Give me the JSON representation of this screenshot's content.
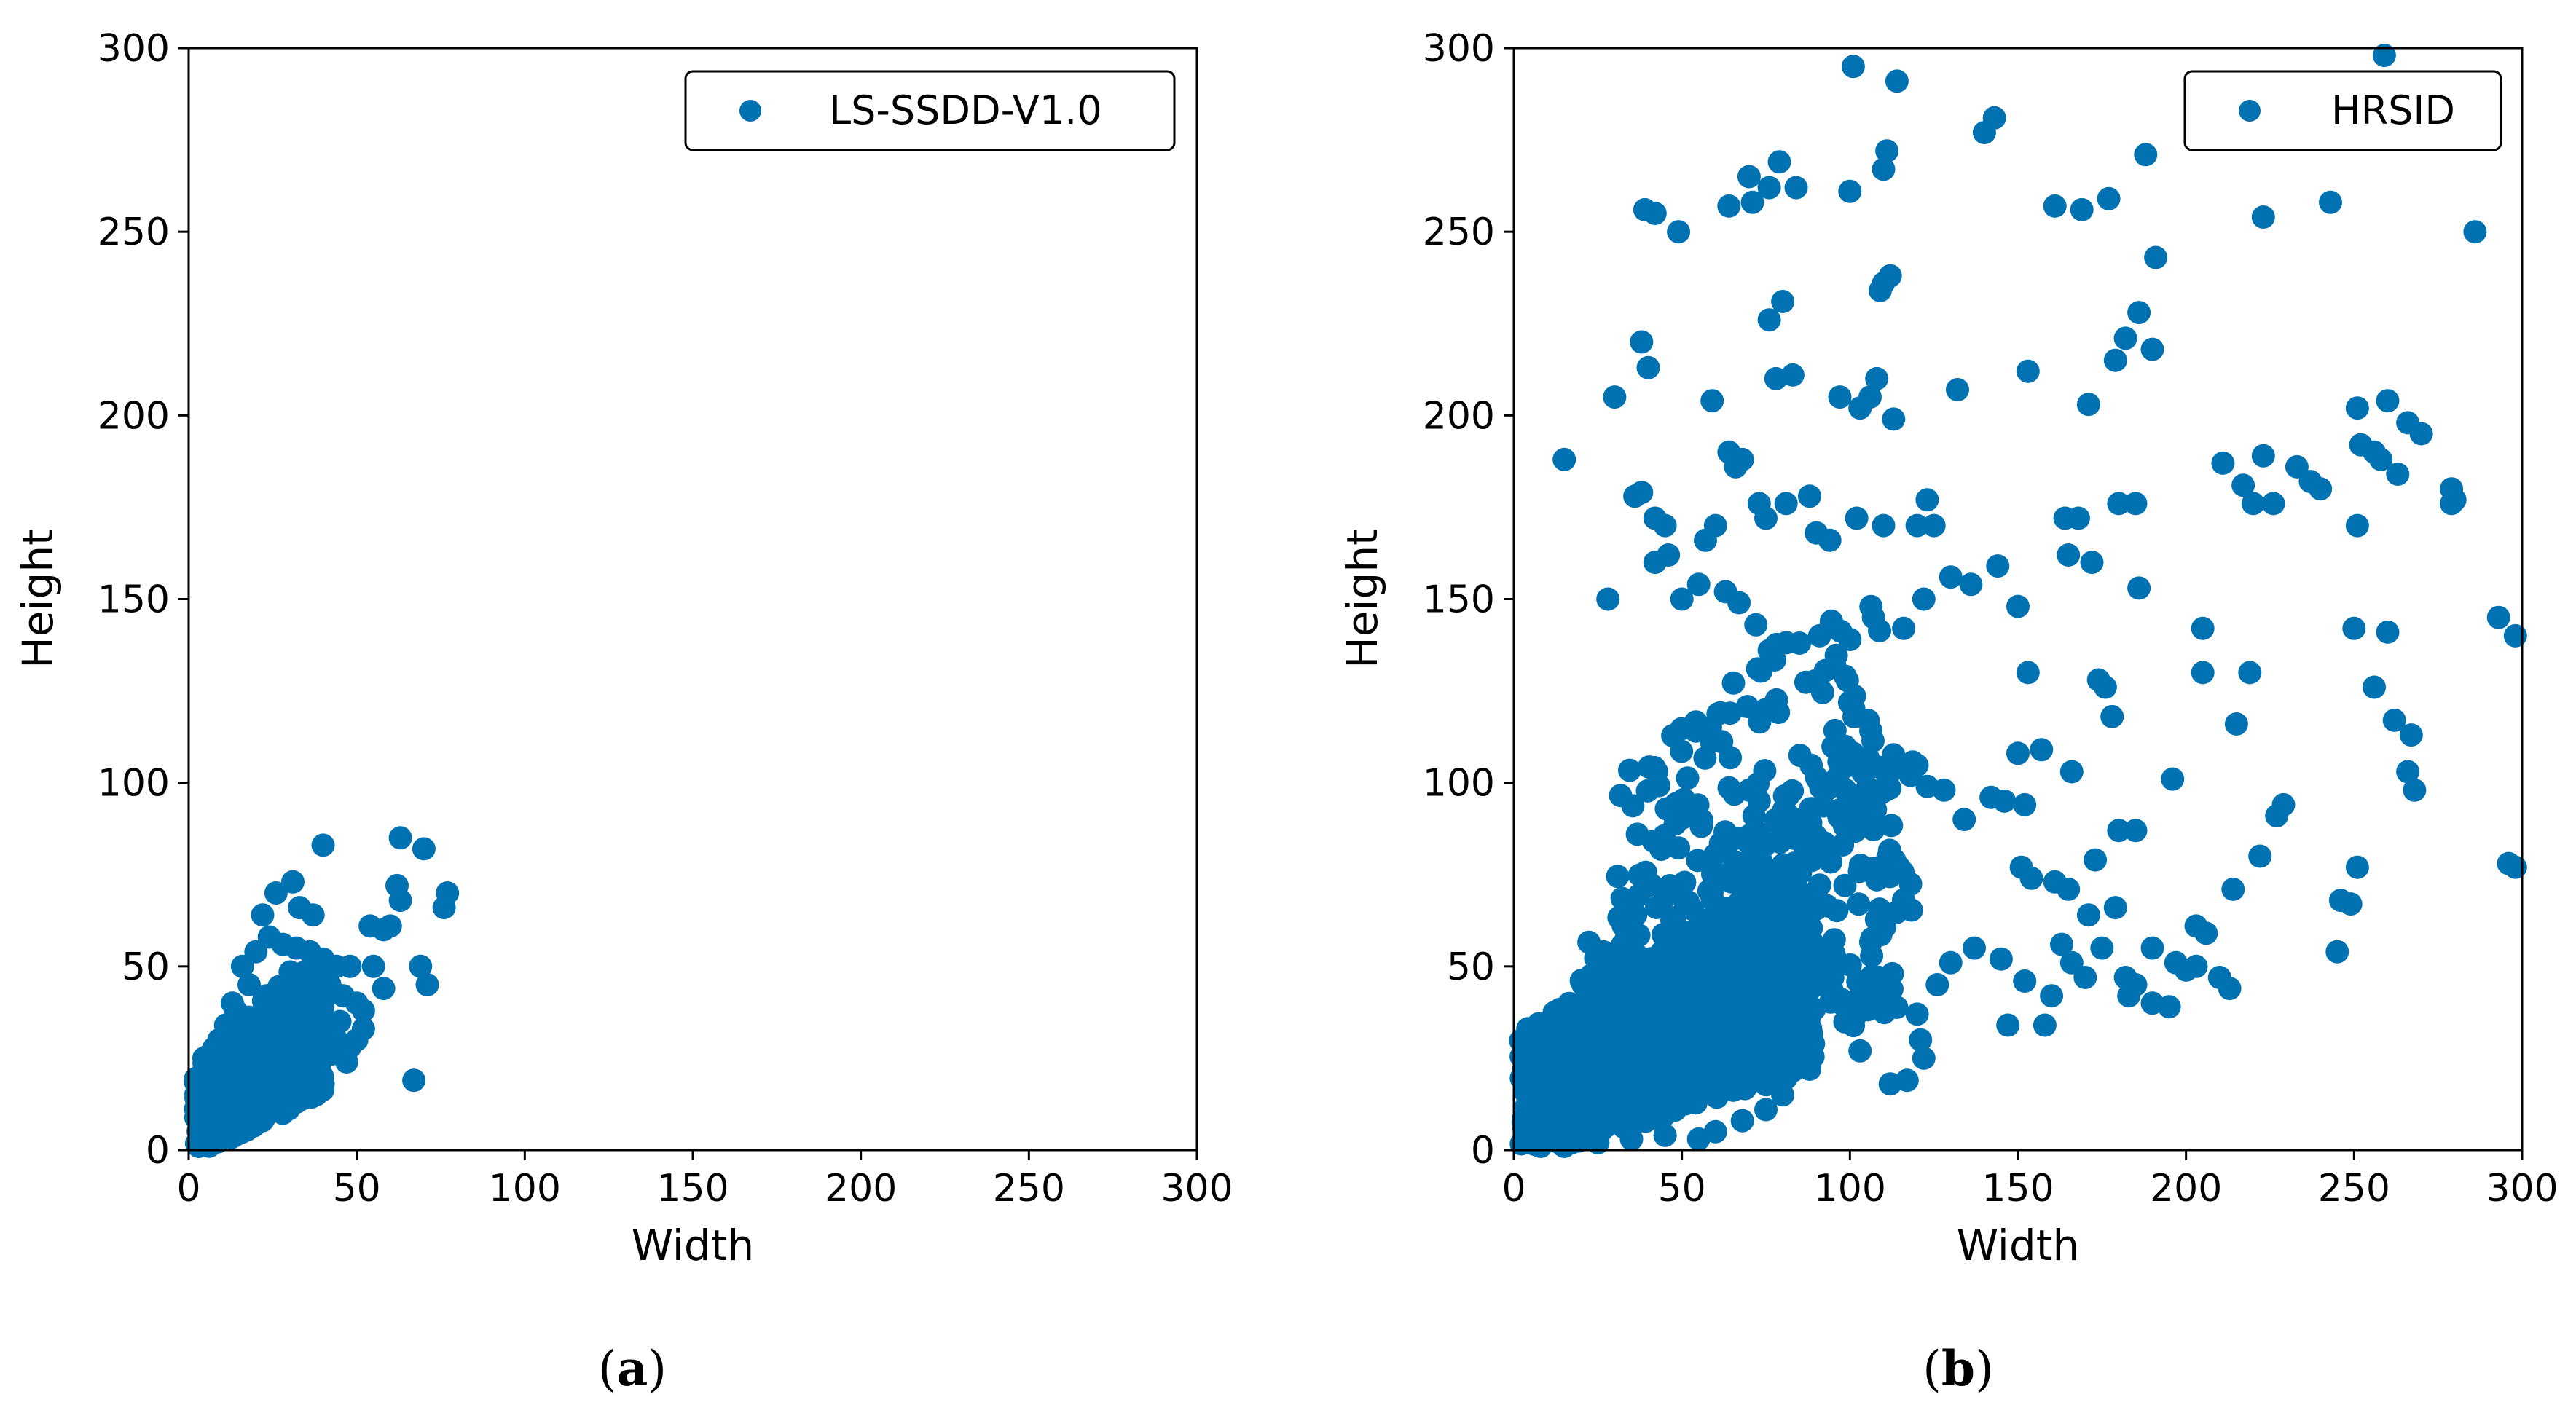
{
  "chart_data": [
    {
      "type": "scatter",
      "panel": "a",
      "caption": {
        "open": "(",
        "letter": "a",
        "close": ")"
      },
      "xlabel": "Width",
      "ylabel": "Height",
      "xlim": [
        0,
        300
      ],
      "ylim": [
        0,
        300
      ],
      "xticks": [
        "0",
        "50",
        "100",
        "150",
        "200",
        "250",
        "300"
      ],
      "yticks": [
        "0",
        "50",
        "100",
        "150",
        "200",
        "250",
        "300"
      ],
      "legend": {
        "label": "LS-SSDD-V1.0",
        "location": "top-right"
      },
      "color": "#0072b2",
      "clusters": [
        {
          "description": "dense",
          "x_range": [
            2,
            40
          ],
          "y_range": [
            1,
            50
          ],
          "count": 600
        }
      ],
      "points": [
        [
          40,
          83
        ],
        [
          63,
          85
        ],
        [
          70,
          82
        ],
        [
          77,
          70
        ],
        [
          76,
          66
        ],
        [
          71,
          45
        ],
        [
          67,
          19
        ],
        [
          69,
          50
        ],
        [
          62,
          72
        ],
        [
          63,
          68
        ],
        [
          58,
          60
        ],
        [
          60,
          61
        ],
        [
          54,
          61
        ],
        [
          31,
          73
        ],
        [
          26,
          70
        ],
        [
          33,
          66
        ],
        [
          37,
          64
        ],
        [
          22,
          64
        ],
        [
          48,
          50
        ],
        [
          55,
          50
        ],
        [
          58,
          44
        ],
        [
          52,
          38
        ],
        [
          45,
          35
        ],
        [
          50,
          30
        ],
        [
          44,
          30
        ],
        [
          42,
          26
        ],
        [
          48,
          28
        ],
        [
          36,
          25
        ],
        [
          30,
          20
        ],
        [
          25,
          15
        ],
        [
          20,
          12
        ],
        [
          15,
          8
        ],
        [
          10,
          6
        ],
        [
          8,
          3
        ],
        [
          5,
          2
        ],
        [
          3,
          1
        ],
        [
          12,
          30
        ],
        [
          10,
          22
        ],
        [
          8,
          18
        ],
        [
          14,
          38
        ],
        [
          18,
          45
        ],
        [
          16,
          50
        ],
        [
          20,
          54
        ],
        [
          24,
          58
        ],
        [
          28,
          56
        ],
        [
          32,
          55
        ],
        [
          36,
          54
        ],
        [
          40,
          52
        ],
        [
          44,
          50
        ],
        [
          42,
          45
        ],
        [
          38,
          40
        ],
        [
          46,
          42
        ],
        [
          50,
          40
        ],
        [
          52,
          33
        ],
        [
          47,
          24
        ],
        [
          40,
          18
        ],
        [
          34,
          14
        ],
        [
          28,
          10
        ],
        [
          22,
          8
        ],
        [
          18,
          6
        ],
        [
          5,
          10
        ],
        [
          6,
          14
        ],
        [
          4,
          6
        ],
        [
          7,
          26
        ],
        [
          9,
          30
        ],
        [
          11,
          34
        ],
        [
          13,
          40
        ],
        [
          20,
          28
        ],
        [
          26,
          32
        ],
        [
          30,
          36
        ],
        [
          34,
          40
        ],
        [
          38,
          30
        ]
      ]
    },
    {
      "type": "scatter",
      "panel": "b",
      "caption": {
        "open": "(",
        "letter": "b",
        "close": ")"
      },
      "xlabel": "Width",
      "ylabel": "Height",
      "xlim": [
        0,
        300
      ],
      "ylim": [
        0,
        300
      ],
      "xticks": [
        "0",
        "50",
        "100",
        "150",
        "200",
        "250",
        "300"
      ],
      "yticks": [
        "0",
        "50",
        "100",
        "150",
        "200",
        "250",
        "300"
      ],
      "legend": {
        "label": "HRSID",
        "location": "top-right"
      },
      "color": "#0072b2",
      "clusters": [
        {
          "description": "dense-core",
          "x_range": [
            2,
            90
          ],
          "y_range": [
            1,
            70
          ],
          "count": 900
        },
        {
          "description": "mid-band",
          "x_range": [
            20,
            120
          ],
          "y_range": [
            10,
            110
          ],
          "count": 350
        },
        {
          "description": "upper-spread",
          "x_range": [
            30,
            110
          ],
          "y_range": [
            60,
            150
          ],
          "count": 120
        }
      ],
      "points": [
        [
          101,
          295
        ],
        [
          114,
          291
        ],
        [
          259,
          298
        ],
        [
          143,
          281
        ],
        [
          140,
          277
        ],
        [
          79,
          269
        ],
        [
          70,
          265
        ],
        [
          64,
          257
        ],
        [
          71,
          258
        ],
        [
          76,
          262
        ],
        [
          84,
          262
        ],
        [
          100,
          261
        ],
        [
          110,
          267
        ],
        [
          111,
          272
        ],
        [
          188,
          271
        ],
        [
          161,
          257
        ],
        [
          169,
          256
        ],
        [
          177,
          259
        ],
        [
          243,
          258
        ],
        [
          223,
          254
        ],
        [
          286,
          250
        ],
        [
          39,
          256
        ],
        [
          42,
          255
        ],
        [
          49,
          250
        ],
        [
          191,
          243
        ],
        [
          110,
          236
        ],
        [
          112,
          238
        ],
        [
          109,
          234
        ],
        [
          80,
          231
        ],
        [
          76,
          226
        ],
        [
          38,
          220
        ],
        [
          40,
          213
        ],
        [
          83,
          211
        ],
        [
          78,
          210
        ],
        [
          59,
          204
        ],
        [
          30,
          205
        ],
        [
          97,
          205
        ],
        [
          103,
          202
        ],
        [
          106,
          205
        ],
        [
          113,
          199
        ],
        [
          108,
          210
        ],
        [
          132,
          207
        ],
        [
          153,
          212
        ],
        [
          182,
          221
        ],
        [
          179,
          215
        ],
        [
          186,
          228
        ],
        [
          190,
          218
        ],
        [
          171,
          203
        ],
        [
          251,
          202
        ],
        [
          260,
          204
        ],
        [
          266,
          198
        ],
        [
          270,
          195
        ],
        [
          252,
          192
        ],
        [
          256,
          190
        ],
        [
          258,
          188
        ],
        [
          223,
          189
        ],
        [
          220,
          176
        ],
        [
          226,
          176
        ],
        [
          233,
          186
        ],
        [
          237,
          182
        ],
        [
          240,
          180
        ],
        [
          211,
          187
        ],
        [
          217,
          181
        ],
        [
          279,
          180
        ],
        [
          279,
          176
        ],
        [
          280,
          177
        ],
        [
          15,
          188
        ],
        [
          64,
          190
        ],
        [
          66,
          186
        ],
        [
          68,
          188
        ],
        [
          36,
          178
        ],
        [
          38,
          179
        ],
        [
          45,
          170
        ],
        [
          42,
          172
        ],
        [
          57,
          166
        ],
        [
          60,
          170
        ],
        [
          75,
          172
        ],
        [
          73,
          176
        ],
        [
          81,
          176
        ],
        [
          88,
          178
        ],
        [
          90,
          168
        ],
        [
          94,
          166
        ],
        [
          102,
          172
        ],
        [
          110,
          170
        ],
        [
          123,
          177
        ],
        [
          120,
          170
        ],
        [
          125,
          170
        ],
        [
          144,
          159
        ],
        [
          165,
          162
        ],
        [
          172,
          160
        ],
        [
          180,
          176
        ],
        [
          185,
          176
        ],
        [
          164,
          172
        ],
        [
          168,
          172
        ],
        [
          251,
          170
        ],
        [
          263,
          184
        ],
        [
          28,
          150
        ],
        [
          42,
          160
        ],
        [
          46,
          162
        ],
        [
          55,
          154
        ],
        [
          50,
          150
        ],
        [
          63,
          152
        ],
        [
          67,
          149
        ],
        [
          72,
          143
        ],
        [
          76,
          136
        ],
        [
          85,
          138
        ],
        [
          91,
          140
        ],
        [
          100,
          139
        ],
        [
          107,
          145
        ],
        [
          116,
          142
        ],
        [
          122,
          150
        ],
        [
          136,
          154
        ],
        [
          130,
          156
        ],
        [
          150,
          148
        ],
        [
          186,
          153
        ],
        [
          205,
          142
        ],
        [
          250,
          142
        ],
        [
          260,
          141
        ],
        [
          293,
          145
        ],
        [
          298,
          140
        ],
        [
          70,
          98
        ],
        [
          73,
          95
        ],
        [
          118,
          102
        ],
        [
          123,
          99
        ],
        [
          128,
          98
        ],
        [
          134,
          90
        ],
        [
          142,
          96
        ],
        [
          146,
          95
        ],
        [
          157,
          109
        ],
        [
          150,
          108
        ],
        [
          153,
          130
        ],
        [
          174,
          128
        ],
        [
          176,
          126
        ],
        [
          178,
          118
        ],
        [
          166,
          103
        ],
        [
          152,
          94
        ],
        [
          196,
          101
        ],
        [
          205,
          130
        ],
        [
          215,
          116
        ],
        [
          219,
          130
        ],
        [
          227,
          91
        ],
        [
          229,
          94
        ],
        [
          222,
          80
        ],
        [
          214,
          71
        ],
        [
          251,
          77
        ],
        [
          249,
          67
        ],
        [
          246,
          68
        ],
        [
          245,
          54
        ],
        [
          256,
          126
        ],
        [
          262,
          117
        ],
        [
          266,
          103
        ],
        [
          268,
          98
        ],
        [
          267,
          113
        ],
        [
          296,
          78
        ],
        [
          298,
          77
        ],
        [
          173,
          79
        ],
        [
          180,
          87
        ],
        [
          185,
          87
        ],
        [
          179,
          66
        ],
        [
          171,
          64
        ],
        [
          165,
          71
        ],
        [
          161,
          73
        ],
        [
          154,
          74
        ],
        [
          151,
          77
        ],
        [
          163,
          56
        ],
        [
          166,
          51
        ],
        [
          170,
          47
        ],
        [
          175,
          55
        ],
        [
          182,
          47
        ],
        [
          185,
          45
        ],
        [
          183,
          42
        ],
        [
          190,
          40
        ],
        [
          195,
          39
        ],
        [
          200,
          49
        ],
        [
          203,
          50
        ],
        [
          206,
          59
        ],
        [
          210,
          47
        ],
        [
          213,
          44
        ],
        [
          203,
          61
        ],
        [
          197,
          51
        ],
        [
          190,
          55
        ],
        [
          160,
          42
        ],
        [
          158,
          34
        ],
        [
          147,
          34
        ],
        [
          152,
          46
        ],
        [
          145,
          52
        ],
        [
          137,
          55
        ],
        [
          130,
          51
        ],
        [
          126,
          45
        ],
        [
          120,
          37
        ],
        [
          121,
          30
        ],
        [
          122,
          25
        ],
        [
          117,
          19
        ],
        [
          112,
          18
        ],
        [
          103,
          27
        ],
        [
          88,
          22
        ],
        [
          80,
          15
        ],
        [
          75,
          11
        ],
        [
          68,
          8
        ],
        [
          60,
          5
        ],
        [
          55,
          3
        ],
        [
          45,
          4
        ],
        [
          35,
          3
        ],
        [
          25,
          2
        ],
        [
          15,
          1
        ],
        [
          8,
          1
        ],
        [
          4,
          2
        ],
        [
          3,
          6
        ]
      ]
    }
  ]
}
